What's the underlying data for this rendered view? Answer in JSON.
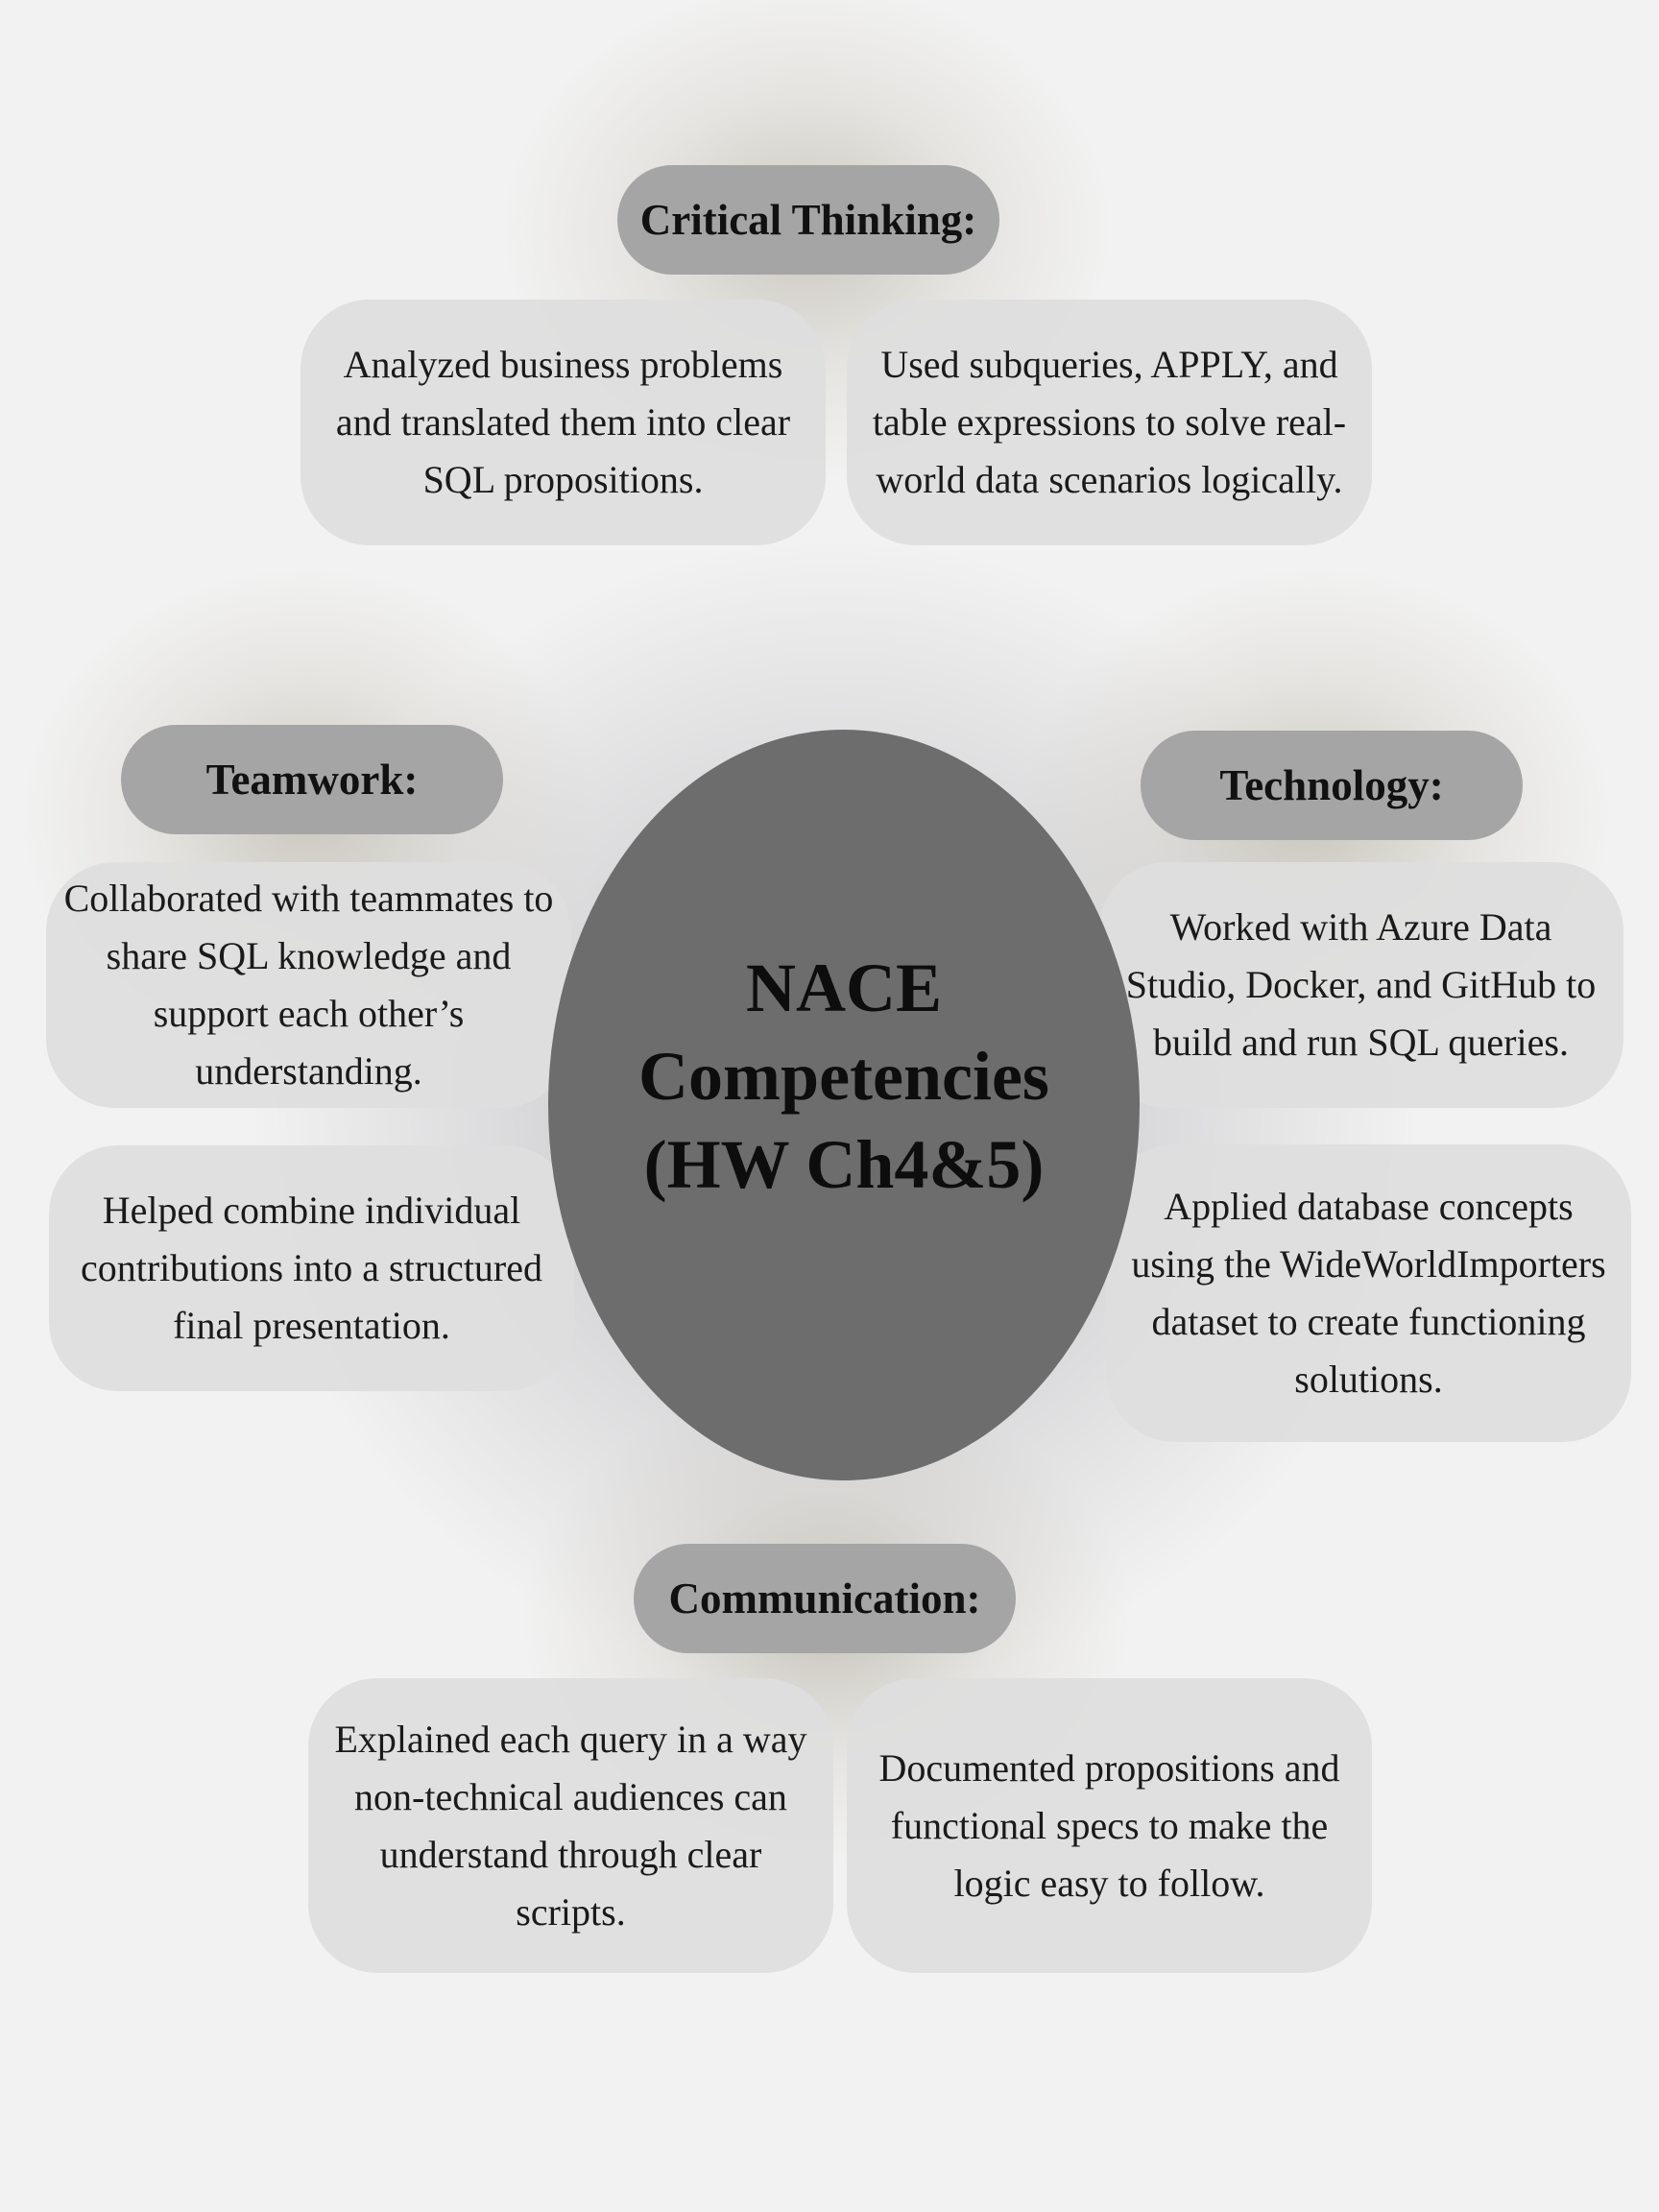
{
  "center": {
    "title": "NACE Competencies (HW Ch4&5)"
  },
  "categories": {
    "critical_thinking": {
      "heading": "Critical Thinking:",
      "items": [
        "Analyzed business problems and translated them into clear SQL propositions.",
        "Used subqueries, APPLY, and table expressions to solve real-world data scenarios logically."
      ]
    },
    "teamwork": {
      "heading": "Teamwork:",
      "items": [
        "Collaborated with teammates to share SQL knowledge and support each other’s understanding.",
        "Helped combine individual contributions into a structured final presentation."
      ]
    },
    "technology": {
      "heading": "Technology:",
      "items": [
        "Worked with Azure Data Studio, Docker, and GitHub to build and run SQL queries.",
        "Applied database concepts using the WideWorldImporters dataset to create functioning solutions."
      ]
    },
    "communication": {
      "heading": "Communication:",
      "items": [
        "Explained each query in a way non-technical audiences can understand through clear scripts.",
        "Documented propositions and functional specs to make the logic easy to follow."
      ]
    }
  },
  "colors": {
    "background": "#f2f2f2",
    "center_fill": "#6d6d6d",
    "heading_pill": "#a5a5a5",
    "detail_box": "#dedede"
  }
}
